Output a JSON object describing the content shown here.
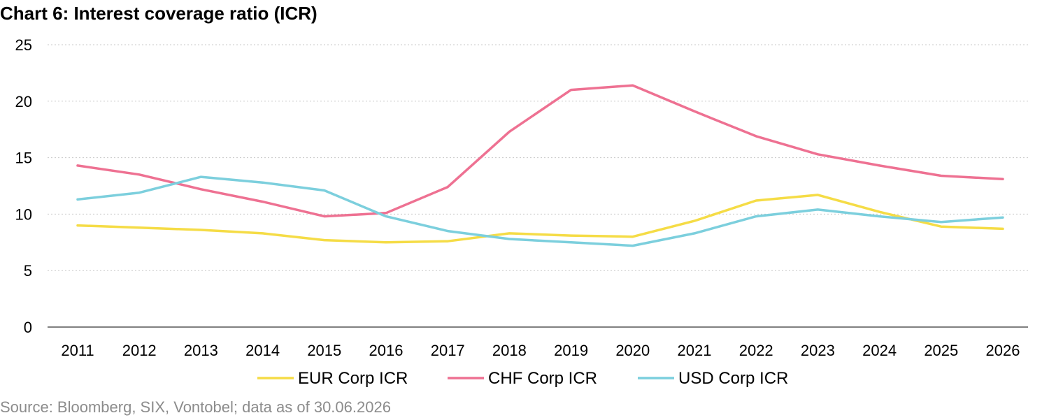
{
  "title": "Chart 6: Interest coverage ratio (ICR)",
  "source": "Source: Bloomberg, SIX, Vontobel; data as of 30.06.2026",
  "chart_data": {
    "type": "line",
    "title": "Chart 6: Interest coverage ratio (ICR)",
    "x": [
      "2011",
      "2012",
      "2013",
      "2014",
      "2015",
      "2016",
      "2017",
      "2018",
      "2019",
      "2020",
      "2021",
      "2022",
      "2023",
      "2024",
      "2025",
      "2026"
    ],
    "ylim": [
      0,
      25
    ],
    "yticks": [
      0,
      5,
      10,
      15,
      20,
      25
    ],
    "grid": true,
    "legend": "bottom",
    "series": [
      {
        "name": "EUR Corp ICR",
        "color": "#f5dc46",
        "values": [
          9.0,
          8.8,
          8.6,
          8.3,
          7.7,
          7.5,
          7.6,
          8.3,
          8.1,
          8.0,
          9.4,
          11.2,
          11.7,
          10.2,
          8.9,
          8.7
        ]
      },
      {
        "name": "CHF Corp ICR",
        "color": "#ee7192",
        "values": [
          14.3,
          13.5,
          12.2,
          11.1,
          9.8,
          10.1,
          12.4,
          17.3,
          21.0,
          21.4,
          19.1,
          16.9,
          15.3,
          14.3,
          13.4,
          13.1
        ]
      },
      {
        "name": "USD Corp ICR",
        "color": "#7ccfdd",
        "values": [
          11.3,
          11.9,
          13.3,
          12.8,
          12.1,
          9.8,
          8.5,
          7.8,
          7.5,
          7.2,
          8.3,
          9.8,
          10.4,
          9.8,
          9.3,
          9.7
        ]
      }
    ]
  }
}
